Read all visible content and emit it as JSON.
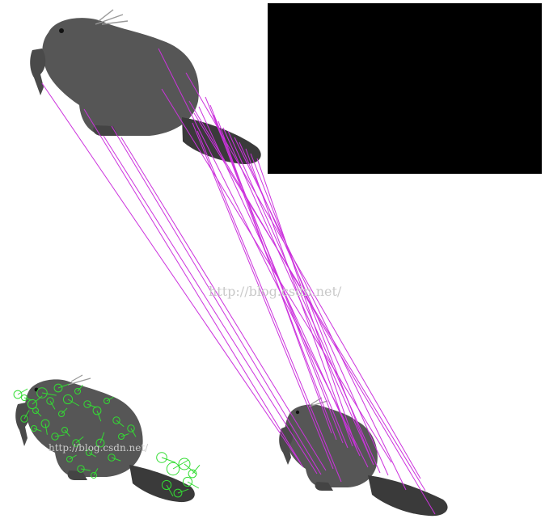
{
  "scene": {
    "background_color": "#ffffff",
    "panel_color": "#000000",
    "match_line_color": "#cc33dd",
    "keypoint_color": "#33dd33",
    "beaver_fur_color": "#505050",
    "beaver_tail_color": "#3a3a3a"
  },
  "watermark": {
    "main": "http://blog.csdn.net/",
    "small": "http://blog.csdn.net/"
  },
  "images": [
    {
      "name": "top-left-beaver",
      "type": "illustration"
    },
    {
      "name": "bottom-left-beaver-with-keypoints",
      "type": "illustration"
    },
    {
      "name": "bottom-right-beaver",
      "type": "illustration"
    }
  ]
}
